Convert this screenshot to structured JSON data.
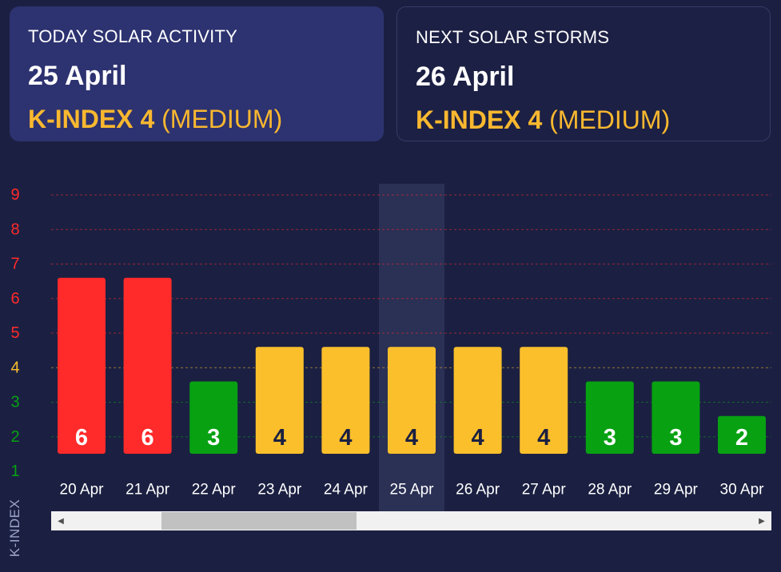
{
  "today_card": {
    "heading": "TODAY SOLAR ACTIVITY",
    "date": "25 April",
    "kindex_label": "K-INDEX 4",
    "level": "(MEDIUM)"
  },
  "next_card": {
    "heading": "NEXT SOLAR STORMS",
    "date": "26 April",
    "kindex_label": "K-INDEX 4",
    "level": "(MEDIUM)"
  },
  "colors": {
    "background": "#1b2042",
    "accent": "#f9b82f",
    "high": "#ff2a2a",
    "medium": "#fbbf2b",
    "low": "#07a112"
  },
  "chart_data": {
    "type": "bar",
    "ylabel": "K-INDEX",
    "ylim": [
      1,
      9
    ],
    "yticks": [
      1,
      2,
      3,
      4,
      5,
      6,
      7,
      8,
      9
    ],
    "categories": [
      "20 Apr",
      "21 Apr",
      "22 Apr",
      "23 Apr",
      "24 Apr",
      "25 Apr",
      "26 Apr",
      "27 Apr",
      "28 Apr",
      "29 Apr",
      "30 Apr"
    ],
    "values": [
      6,
      6,
      3,
      4,
      4,
      4,
      4,
      4,
      3,
      3,
      2
    ],
    "highlighted_category": "25 Apr",
    "grid": true
  },
  "scrollbar": {
    "left_arrow_icon": "triangle-left-icon",
    "right_arrow_icon": "triangle-right-icon"
  }
}
